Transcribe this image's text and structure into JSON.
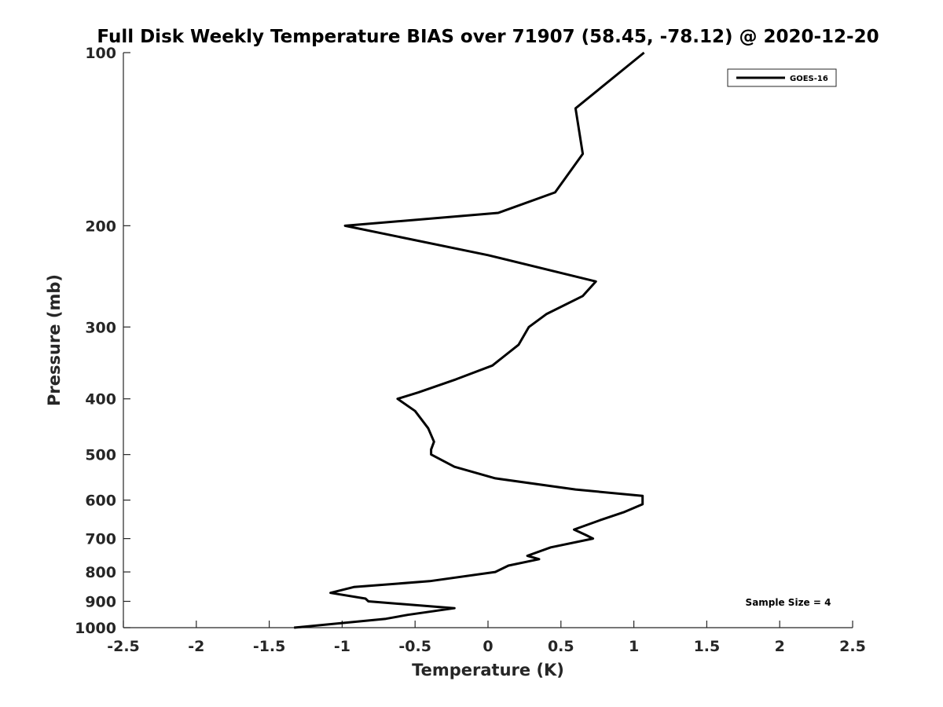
{
  "chart_data": {
    "type": "line",
    "title": "Full Disk Weekly Temperature BIAS over 71907 (58.45, -78.12) @ 2020-12-20",
    "xlabel": "Temperature (K)",
    "ylabel": "Pressure (mb)",
    "xlim": [
      -2.5,
      2.5
    ],
    "ylim": [
      100,
      1000
    ],
    "yscale": "log",
    "yreversed": true,
    "x_ticks": [
      "-2.5",
      "-2",
      "-1.5",
      "-1",
      "-0.5",
      "0",
      "0.5",
      "1",
      "1.5",
      "2",
      "2.5"
    ],
    "y_ticks": [
      "100",
      "200",
      "300",
      "400",
      "500",
      "600",
      "700",
      "800",
      "900",
      "1000"
    ],
    "grid": false,
    "legend_position": "top-right",
    "series": [
      {
        "name": "GOES-16",
        "color": "#000000",
        "points": [
          [
            1.07,
            100
          ],
          [
            0.6,
            125
          ],
          [
            0.65,
            150
          ],
          [
            0.46,
            175
          ],
          [
            0.07,
            190
          ],
          [
            -0.98,
            200
          ],
          [
            0.0,
            225
          ],
          [
            0.74,
            250
          ],
          [
            0.65,
            265
          ],
          [
            0.4,
            285
          ],
          [
            0.28,
            300
          ],
          [
            0.21,
            322
          ],
          [
            0.03,
            350
          ],
          [
            -0.22,
            370
          ],
          [
            -0.48,
            390
          ],
          [
            -0.62,
            400
          ],
          [
            -0.5,
            420
          ],
          [
            -0.41,
            450
          ],
          [
            -0.37,
            475
          ],
          [
            -0.39,
            490
          ],
          [
            -0.39,
            500
          ],
          [
            -0.23,
            525
          ],
          [
            0.05,
            550
          ],
          [
            0.6,
            575
          ],
          [
            1.06,
            590
          ],
          [
            1.06,
            610
          ],
          [
            0.93,
            630
          ],
          [
            0.77,
            650
          ],
          [
            0.59,
            675
          ],
          [
            0.67,
            690
          ],
          [
            0.72,
            700
          ],
          [
            0.43,
            725
          ],
          [
            0.27,
            750
          ],
          [
            0.35,
            760
          ],
          [
            0.14,
            780
          ],
          [
            0.05,
            800
          ],
          [
            -0.4,
            830
          ],
          [
            -0.92,
            850
          ],
          [
            -1.08,
            870
          ],
          [
            -0.84,
            890
          ],
          [
            -0.82,
            900
          ],
          [
            -0.23,
            925
          ],
          [
            -0.55,
            950
          ],
          [
            -0.7,
            965
          ],
          [
            -1.33,
            1000
          ]
        ]
      }
    ],
    "annotation": "Sample Size = 4"
  }
}
